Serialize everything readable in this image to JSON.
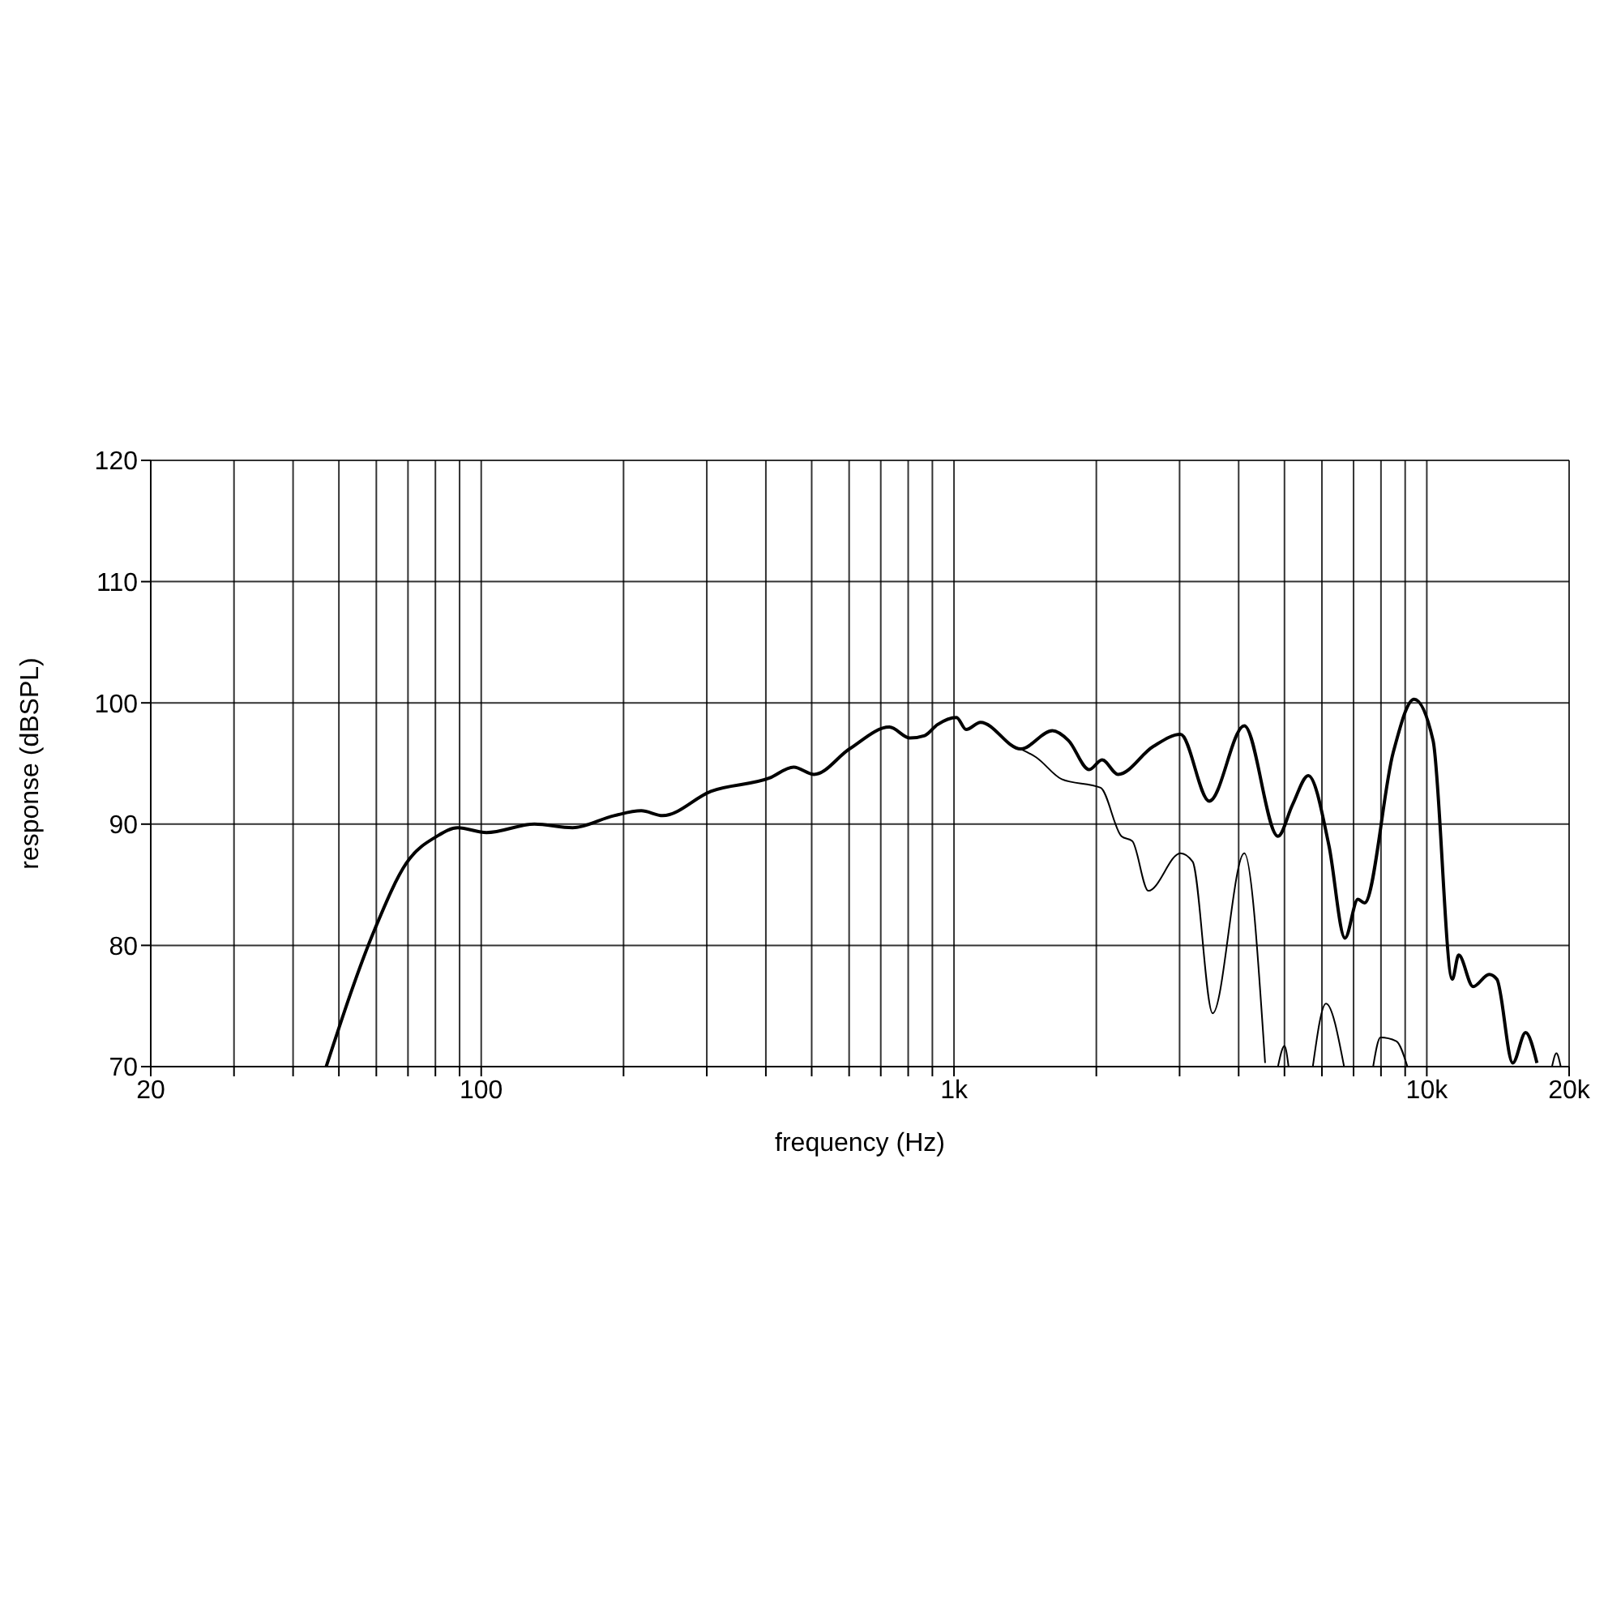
{
  "chart_data": {
    "type": "line",
    "xlabel": "frequency (Hz)",
    "ylabel": "response (dBSPL)",
    "log": "x",
    "grid": true,
    "xlim": [
      20,
      20000
    ],
    "ylim": [
      70,
      120
    ],
    "xticks": [
      20,
      {
        "value": 30,
        "label": null
      },
      {
        "value": 40,
        "label": null
      },
      {
        "value": 50,
        "label": null
      },
      {
        "value": 60,
        "label": null
      },
      {
        "value": 70,
        "label": null
      },
      {
        "value": 80,
        "label": null
      },
      {
        "value": 90,
        "label": null
      },
      100,
      {
        "value": 200,
        "label": null
      },
      {
        "value": 300,
        "label": null
      },
      {
        "value": 400,
        "label": null
      },
      {
        "value": 500,
        "label": null
      },
      {
        "value": 600,
        "label": null
      },
      {
        "value": 700,
        "label": null
      },
      {
        "value": 800,
        "label": null
      },
      {
        "value": 900,
        "label": null
      },
      {
        "value": 1000,
        "label": "1k"
      },
      {
        "value": 2000,
        "label": null
      },
      {
        "value": 3000,
        "label": null
      },
      {
        "value": 4000,
        "label": null
      },
      {
        "value": 5000,
        "label": null
      },
      {
        "value": 6000,
        "label": null
      },
      {
        "value": 7000,
        "label": null
      },
      {
        "value": 8000,
        "label": null
      },
      {
        "value": 9000,
        "label": null
      },
      {
        "value": 10000,
        "label": "10k"
      },
      {
        "value": 20000,
        "label": "20k"
      }
    ],
    "yticks": [
      70,
      80,
      90,
      100,
      110,
      120
    ],
    "series": [
      {
        "color": "#000000",
        "x": [
          47,
          59.5,
          69.5,
          80.6,
          89.2,
          102.6,
          129.6,
          156,
          191,
          218,
          242,
          306,
          407,
          458,
          506,
          601,
          730,
          807,
          867,
          922,
          1012,
          1061,
          1138,
          1384,
          1615,
          1746,
          1932,
          2057,
          2224,
          2638,
          3013,
          3467,
          4111,
          4844,
          5200,
          5616,
          6211,
          6714,
          7150,
          7380,
          8490,
          9400,
          10310,
          11320,
          11680,
          12530,
          13550,
          14070,
          15200,
          16180,
          17100
        ],
        "values": [
          70,
          81.3,
          86.8,
          89,
          89.7,
          89.3,
          90,
          89.7,
          90.7,
          91.1,
          90.7,
          92.7,
          93.8,
          94.7,
          94.1,
          96.2,
          98,
          97.1,
          97.3,
          98.2,
          98.8,
          97.8,
          98.4,
          96.2,
          97.7,
          96.9,
          94.5,
          95.3,
          94.1,
          96.4,
          97.4,
          91.9,
          98.1,
          89,
          91.6,
          94,
          88.2,
          80.6,
          83.8,
          83.5,
          95.9,
          100.3,
          96.9,
          77.2,
          79.2,
          76.6,
          77.6,
          77.2,
          70.3,
          72.8,
          70.3
        ]
      },
      {
        "color": "#000000",
        "x": [
          1384,
          1493,
          1690,
          2042,
          2260,
          2383,
          2577,
          3013,
          3197,
          3524,
          4111,
          4550,
          4700,
          4844,
          5000,
          5100,
          5400,
          5740,
          6120,
          6684,
          7200,
          7700,
          7980,
          8620,
          9100,
          9500,
          18400,
          18800,
          19200
        ],
        "values": [
          96.2,
          95.5,
          93.7,
          93,
          89,
          88.6,
          84.5,
          87.6,
          86.9,
          74.4,
          87.6,
          70.3,
          null,
          70,
          71.7,
          70,
          null,
          70,
          75.2,
          70,
          null,
          70,
          72.4,
          72.1,
          70,
          null,
          70,
          71.1,
          70
        ]
      }
    ]
  }
}
